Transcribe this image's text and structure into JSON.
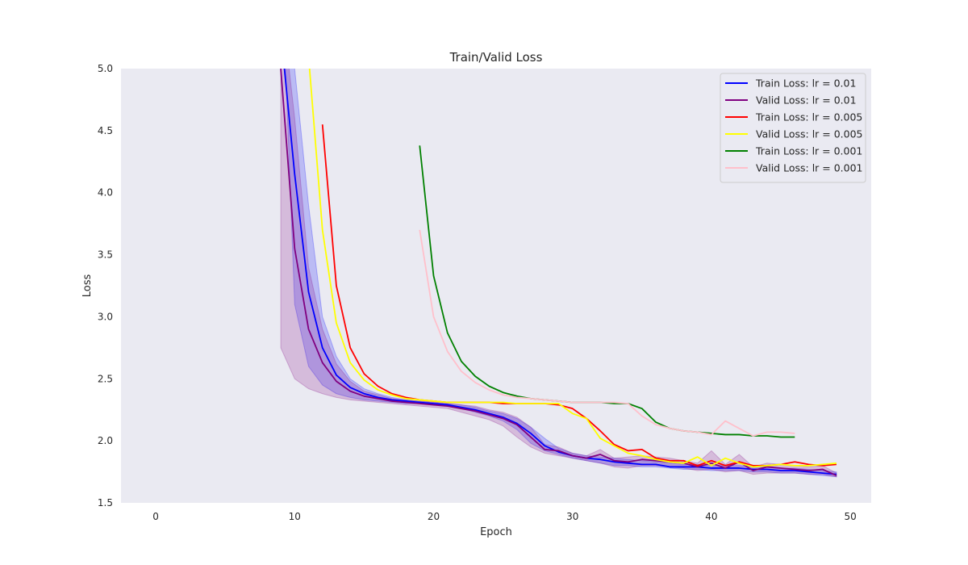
{
  "chart_data": {
    "type": "line",
    "title": "Train/Valid Loss",
    "xlabel": "Epoch",
    "ylabel": "Loss",
    "xlim": [
      -2.5,
      51.5
    ],
    "ylim": [
      1.5,
      5.0
    ],
    "xticks": [
      0,
      10,
      20,
      30,
      40,
      50
    ],
    "yticks": [
      1.5,
      2.0,
      2.5,
      3.0,
      3.5,
      4.0,
      4.5,
      5.0
    ],
    "grid": false,
    "background": "#eaeaf2",
    "legend_position": "top-right",
    "series": [
      {
        "name": "Train Loss: lr = 0.01",
        "color": "#0000ff",
        "x": [
          9,
          10,
          11,
          12,
          13,
          14,
          15,
          16,
          17,
          18,
          19,
          20,
          21,
          22,
          23,
          24,
          25,
          26,
          27,
          28,
          29,
          30,
          31,
          32,
          33,
          34,
          35,
          36,
          37,
          38,
          39,
          40,
          41,
          42,
          43,
          44,
          45,
          46,
          47,
          48,
          49
        ],
        "y": [
          5.3,
          4.15,
          3.2,
          2.75,
          2.53,
          2.43,
          2.38,
          2.35,
          2.33,
          2.32,
          2.31,
          2.3,
          2.29,
          2.27,
          2.25,
          2.22,
          2.19,
          2.14,
          2.06,
          1.96,
          1.91,
          1.88,
          1.86,
          1.85,
          1.83,
          1.82,
          1.81,
          1.81,
          1.79,
          1.79,
          1.79,
          1.78,
          1.78,
          1.78,
          1.77,
          1.77,
          1.76,
          1.76,
          1.75,
          1.74,
          1.73
        ],
        "band_lower": [
          6.0,
          3.1,
          2.6,
          2.45,
          2.38,
          2.35,
          2.33,
          2.32,
          2.31,
          2.3,
          2.3,
          2.29,
          2.28,
          2.26,
          2.23,
          2.2,
          2.16,
          2.09,
          1.98,
          1.92,
          1.89,
          1.86,
          1.84,
          1.82,
          1.8,
          1.8,
          1.79,
          1.79,
          1.78,
          1.77,
          1.77,
          1.76,
          1.76,
          1.76,
          1.75,
          1.75,
          1.74,
          1.74,
          1.73,
          1.72,
          1.71
        ],
        "band_upper": [
          5.5,
          5.0,
          3.9,
          3.0,
          2.68,
          2.5,
          2.42,
          2.38,
          2.35,
          2.33,
          2.32,
          2.31,
          2.3,
          2.29,
          2.27,
          2.24,
          2.22,
          2.18,
          2.11,
          2.02,
          1.94,
          1.9,
          1.88,
          1.87,
          1.86,
          1.85,
          1.84,
          1.83,
          1.82,
          1.81,
          1.81,
          1.8,
          1.8,
          1.8,
          1.79,
          1.79,
          1.78,
          1.78,
          1.77,
          1.76,
          1.75
        ]
      },
      {
        "name": "Valid Loss: lr = 0.01",
        "color": "#800080",
        "x": [
          9,
          10,
          11,
          12,
          13,
          14,
          15,
          16,
          17,
          18,
          19,
          20,
          21,
          22,
          23,
          24,
          25,
          26,
          27,
          28,
          29,
          30,
          31,
          32,
          33,
          34,
          35,
          36,
          37,
          38,
          39,
          40,
          41,
          42,
          43,
          44,
          45,
          46,
          47,
          48,
          49
        ],
        "y": [
          5.0,
          3.55,
          2.9,
          2.63,
          2.48,
          2.4,
          2.36,
          2.34,
          2.32,
          2.31,
          2.3,
          2.29,
          2.28,
          2.26,
          2.24,
          2.21,
          2.18,
          2.13,
          2.03,
          1.93,
          1.92,
          1.88,
          1.86,
          1.89,
          1.84,
          1.83,
          1.85,
          1.84,
          1.83,
          1.82,
          1.79,
          1.82,
          1.78,
          1.83,
          1.76,
          1.79,
          1.78,
          1.77,
          1.76,
          1.77,
          1.72
        ],
        "band_lower": [
          2.75,
          2.5,
          2.42,
          2.38,
          2.35,
          2.33,
          2.32,
          2.31,
          2.3,
          2.29,
          2.28,
          2.27,
          2.26,
          2.23,
          2.2,
          2.17,
          2.12,
          2.03,
          1.95,
          1.9,
          1.88,
          1.86,
          1.84,
          1.82,
          1.79,
          1.78,
          1.8,
          1.8,
          1.79,
          1.78,
          1.76,
          1.77,
          1.75,
          1.76,
          1.73,
          1.74,
          1.74,
          1.74,
          1.73,
          1.73,
          1.71
        ],
        "band_upper": [
          5.6,
          4.6,
          3.4,
          2.9,
          2.62,
          2.48,
          2.4,
          2.37,
          2.34,
          2.33,
          2.32,
          2.31,
          2.3,
          2.29,
          2.28,
          2.25,
          2.23,
          2.19,
          2.11,
          1.97,
          1.95,
          1.9,
          1.88,
          1.93,
          1.86,
          1.87,
          1.88,
          1.87,
          1.86,
          1.84,
          1.82,
          1.92,
          1.81,
          1.89,
          1.79,
          1.82,
          1.81,
          1.8,
          1.79,
          1.8,
          1.74
        ]
      },
      {
        "name": "Train Loss: lr = 0.005",
        "color": "#ff0000",
        "x": [
          12,
          13,
          14,
          15,
          16,
          17,
          18,
          19,
          20,
          21,
          22,
          23,
          24,
          25,
          26,
          27,
          28,
          29,
          30,
          31,
          32,
          33,
          34,
          35,
          36,
          37,
          38,
          39,
          40,
          41,
          42,
          43,
          44,
          45,
          46,
          47,
          48,
          49
        ],
        "y": [
          4.55,
          3.25,
          2.75,
          2.54,
          2.44,
          2.38,
          2.35,
          2.33,
          2.32,
          2.31,
          2.31,
          2.31,
          2.31,
          2.3,
          2.3,
          2.3,
          2.3,
          2.29,
          2.26,
          2.18,
          2.08,
          1.97,
          1.92,
          1.93,
          1.86,
          1.84,
          1.84,
          1.8,
          1.84,
          1.8,
          1.83,
          1.8,
          1.8,
          1.81,
          1.83,
          1.81,
          1.8,
          1.81
        ]
      },
      {
        "name": "Valid Loss: lr = 0.005",
        "color": "#ffff00",
        "x": [
          11,
          12,
          13,
          14,
          15,
          16,
          17,
          18,
          19,
          20,
          21,
          22,
          23,
          24,
          25,
          26,
          27,
          28,
          29,
          30,
          31,
          32,
          33,
          34,
          35,
          36,
          37,
          38,
          39,
          40,
          41,
          42,
          43,
          44,
          45,
          46,
          47,
          48,
          49
        ],
        "y": [
          5.1,
          3.7,
          2.95,
          2.63,
          2.49,
          2.41,
          2.37,
          2.34,
          2.33,
          2.32,
          2.31,
          2.31,
          2.31,
          2.31,
          2.31,
          2.3,
          2.3,
          2.3,
          2.3,
          2.22,
          2.18,
          2.02,
          1.96,
          1.9,
          1.88,
          1.85,
          1.83,
          1.82,
          1.87,
          1.8,
          1.86,
          1.82,
          1.79,
          1.8,
          1.81,
          1.8,
          1.8,
          1.81,
          1.82
        ]
      },
      {
        "name": "Train Loss: lr = 0.001",
        "color": "#008000",
        "x": [
          19,
          20,
          21,
          22,
          23,
          24,
          25,
          26,
          27,
          28,
          29,
          30,
          31,
          32,
          33,
          34,
          35,
          36,
          37,
          38,
          39,
          40,
          41,
          42,
          43,
          44,
          45,
          46
        ],
        "y": [
          4.38,
          3.33,
          2.87,
          2.64,
          2.52,
          2.44,
          2.39,
          2.36,
          2.34,
          2.33,
          2.32,
          2.31,
          2.31,
          2.31,
          2.3,
          2.3,
          2.26,
          2.15,
          2.1,
          2.08,
          2.07,
          2.06,
          2.05,
          2.05,
          2.04,
          2.04,
          2.03,
          2.03
        ]
      },
      {
        "name": "Valid Loss: lr = 0.001",
        "color": "#ffc0cb",
        "x": [
          19,
          20,
          21,
          22,
          23,
          24,
          25,
          26,
          27,
          28,
          29,
          30,
          31,
          32,
          33,
          34,
          35,
          36,
          37,
          38,
          39,
          40,
          41,
          42,
          43,
          44,
          45,
          46
        ],
        "y": [
          3.7,
          3.0,
          2.72,
          2.56,
          2.47,
          2.41,
          2.37,
          2.35,
          2.34,
          2.33,
          2.32,
          2.31,
          2.31,
          2.31,
          2.31,
          2.3,
          2.2,
          2.13,
          2.1,
          2.08,
          2.07,
          2.05,
          2.16,
          2.1,
          2.04,
          2.07,
          2.07,
          2.06
        ]
      }
    ],
    "bands_for": [
      "Train Loss: lr = 0.01",
      "Valid Loss: lr = 0.01"
    ]
  }
}
